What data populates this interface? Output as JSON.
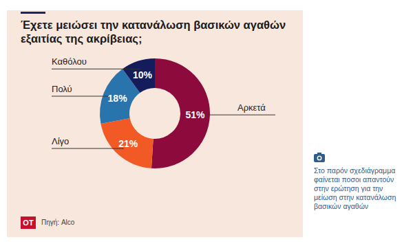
{
  "chart_data": {
    "type": "pie",
    "title": "Έχετε μειώσει την κατανάλωση βασικών αγαθών εξαιτίας της ακρίβειας;",
    "categories": [
      "Αρκετά",
      "Λίγο",
      "Πολύ",
      "Καθόλου"
    ],
    "values": [
      51,
      21,
      18,
      10
    ],
    "value_labels": [
      "51%",
      "21%",
      "18%",
      "10%"
    ],
    "colors": [
      "#8c0b3c",
      "#f15a24",
      "#2a74ad",
      "#141c5c"
    ],
    "data_labels": true,
    "source": "Πηγή: Alco",
    "logo": "OT",
    "caption": "Στο παρόν σχεδιάγραμμα φαίνεται ποσοι απαντούν στην ερώτηση για την μείωση στην κατανάλωση βασικών αγαθών"
  }
}
